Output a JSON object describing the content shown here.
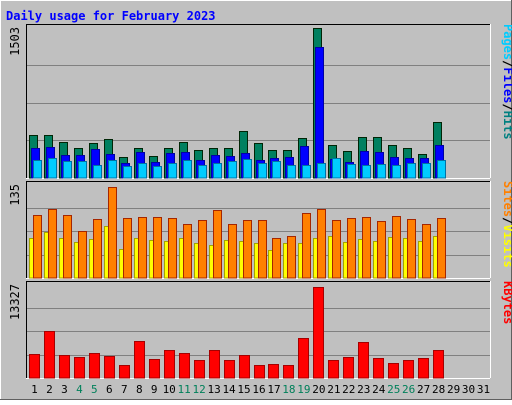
{
  "chart_data": {
    "title": "Daily usage for February 2023",
    "type": "bar",
    "x": [
      "1",
      "2",
      "3",
      "4",
      "5",
      "6",
      "7",
      "8",
      "9",
      "10",
      "11",
      "12",
      "13",
      "14",
      "15",
      "16",
      "17",
      "18",
      "19",
      "20",
      "21",
      "22",
      "23",
      "24",
      "25",
      "26",
      "27",
      "28",
      "29",
      "30",
      "31"
    ],
    "weekend_days": [
      "4",
      "5",
      "11",
      "12",
      "18",
      "19",
      "25",
      "26"
    ],
    "panels": [
      {
        "id": "hits-files-pages",
        "ymax_label": "1503",
        "ymax": 1503,
        "legend": [
          {
            "label": "Pages",
            "color": "#00ccff"
          },
          {
            "label": "/",
            "color": "#000000"
          },
          {
            "label": "Files",
            "color": "#0000ff"
          },
          {
            "label": "/",
            "color": "#000000"
          },
          {
            "label": "Hits",
            "color": "#008080"
          }
        ],
        "series": [
          {
            "name": "Hits",
            "color": "#008060",
            "values": [
              430,
              430,
              360,
              300,
              350,
              390,
              210,
              300,
              220,
              300,
              360,
              280,
              300,
              300,
              470,
              350,
              280,
              280,
              400,
              1490,
              330,
              270,
              410,
              410,
              330,
              300,
              240,
              560
            ]
          },
          {
            "name": "Files",
            "color": "#0000ff",
            "values": [
              300,
              310,
              230,
              230,
              290,
              240,
              150,
              260,
              160,
              250,
              260,
              180,
              230,
              220,
              250,
              180,
              200,
              210,
              320,
              1300,
              190,
              160,
              270,
              260,
              210,
              200,
              200,
              330
            ]
          },
          {
            "name": "Pages",
            "color": "#00ccff",
            "values": [
              180,
              200,
              170,
              170,
              130,
              180,
              120,
              150,
              120,
              150,
              180,
              130,
              150,
              170,
              190,
              150,
              170,
              130,
              130,
              150,
              200,
              140,
              130,
              140,
              130,
              150,
              150,
              180
            ]
          }
        ]
      },
      {
        "id": "visits-sites",
        "ymax_label": "135",
        "ymax": 135,
        "legend": [
          {
            "label": "Sites",
            "color": "#ff8000"
          },
          {
            "label": "/",
            "color": "#000000"
          },
          {
            "label": "Visits",
            "color": "#ffff00"
          }
        ],
        "series": [
          {
            "name": "Visits",
            "color": "#ffff00",
            "values": [
              58,
              66,
              57,
              51,
              56,
              74,
              42,
              57,
              55,
              53,
              57,
              50,
              48,
              54,
              53,
              50,
              40,
              50,
              50,
              58,
              60,
              51,
              56,
              53,
              59,
              58,
              53,
              60
            ]
          },
          {
            "name": "Sites",
            "color": "#ff8000",
            "values": [
              90,
              99,
              91,
              68,
              85,
              131,
              86,
              88,
              87,
              86,
              78,
              84,
              98,
              78,
              83,
              83,
              57,
              61,
              93,
              99,
              84,
              86,
              88,
              82,
              89,
              85,
              77,
              86
            ]
          }
        ]
      },
      {
        "id": "kbytes",
        "ymax_label": "13327",
        "ymax": 13327,
        "legend": [
          {
            "label": "KBytes",
            "color": "#ff0000"
          }
        ],
        "series": [
          {
            "name": "KBytes",
            "color": "#ff0000",
            "values": [
              3400,
              6600,
              3200,
              3000,
              3500,
              3100,
              1800,
              5200,
              2700,
              3900,
              3500,
              2500,
              3900,
              2600,
              3300,
              1900,
              2000,
              1900,
              5700,
              12900,
              2500,
              3000,
              5100,
              2800,
              2100,
              2600,
              2800,
              4000
            ]
          }
        ]
      }
    ]
  }
}
